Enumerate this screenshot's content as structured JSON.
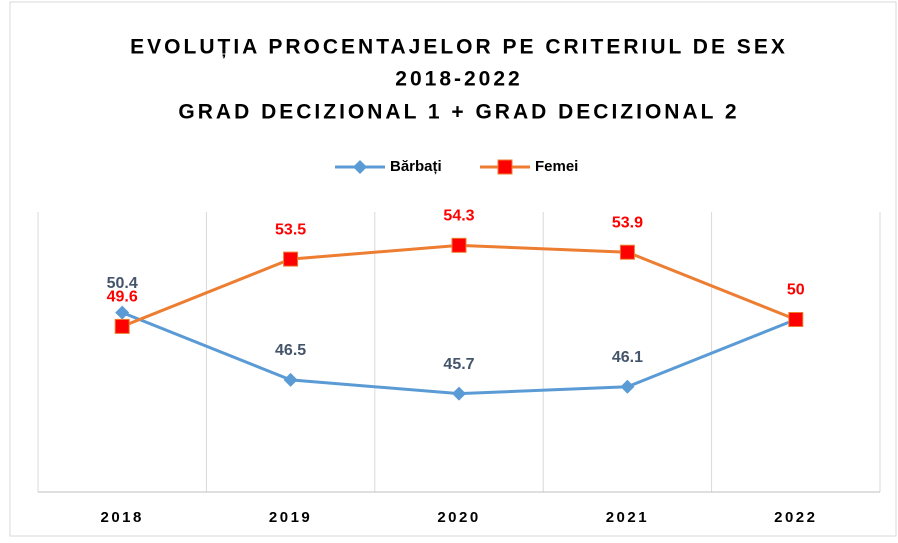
{
  "chart_data": {
    "type": "line",
    "title_lines": [
      "EVOLUȚIA PROCENTAJELOR PE CRITERIUL DE SEX",
      "2018-2022",
      "GRAD DECIZIONAL 1 + GRAD DECIZIONAL 2"
    ],
    "categories": [
      "2018",
      "2019",
      "2020",
      "2021",
      "2022"
    ],
    "series": [
      {
        "name": "Bărbați",
        "color": "#5b9bd5",
        "label_color": "#44546a",
        "marker": "diamond",
        "values": [
          50.4,
          46.5,
          45.7,
          46.1,
          50
        ],
        "value_labels": [
          "50.4",
          "46.5",
          "45.7",
          "46.1",
          null
        ]
      },
      {
        "name": "Femei",
        "color": "#ed7d31",
        "label_color": "#ff0000",
        "marker": "square",
        "values": [
          49.6,
          53.5,
          54.3,
          53.9,
          50
        ],
        "value_labels": [
          "49.6",
          "53.5",
          "54.3",
          "53.9",
          "50"
        ]
      }
    ],
    "ylim": [
      40,
      56
    ],
    "legend": "top"
  }
}
